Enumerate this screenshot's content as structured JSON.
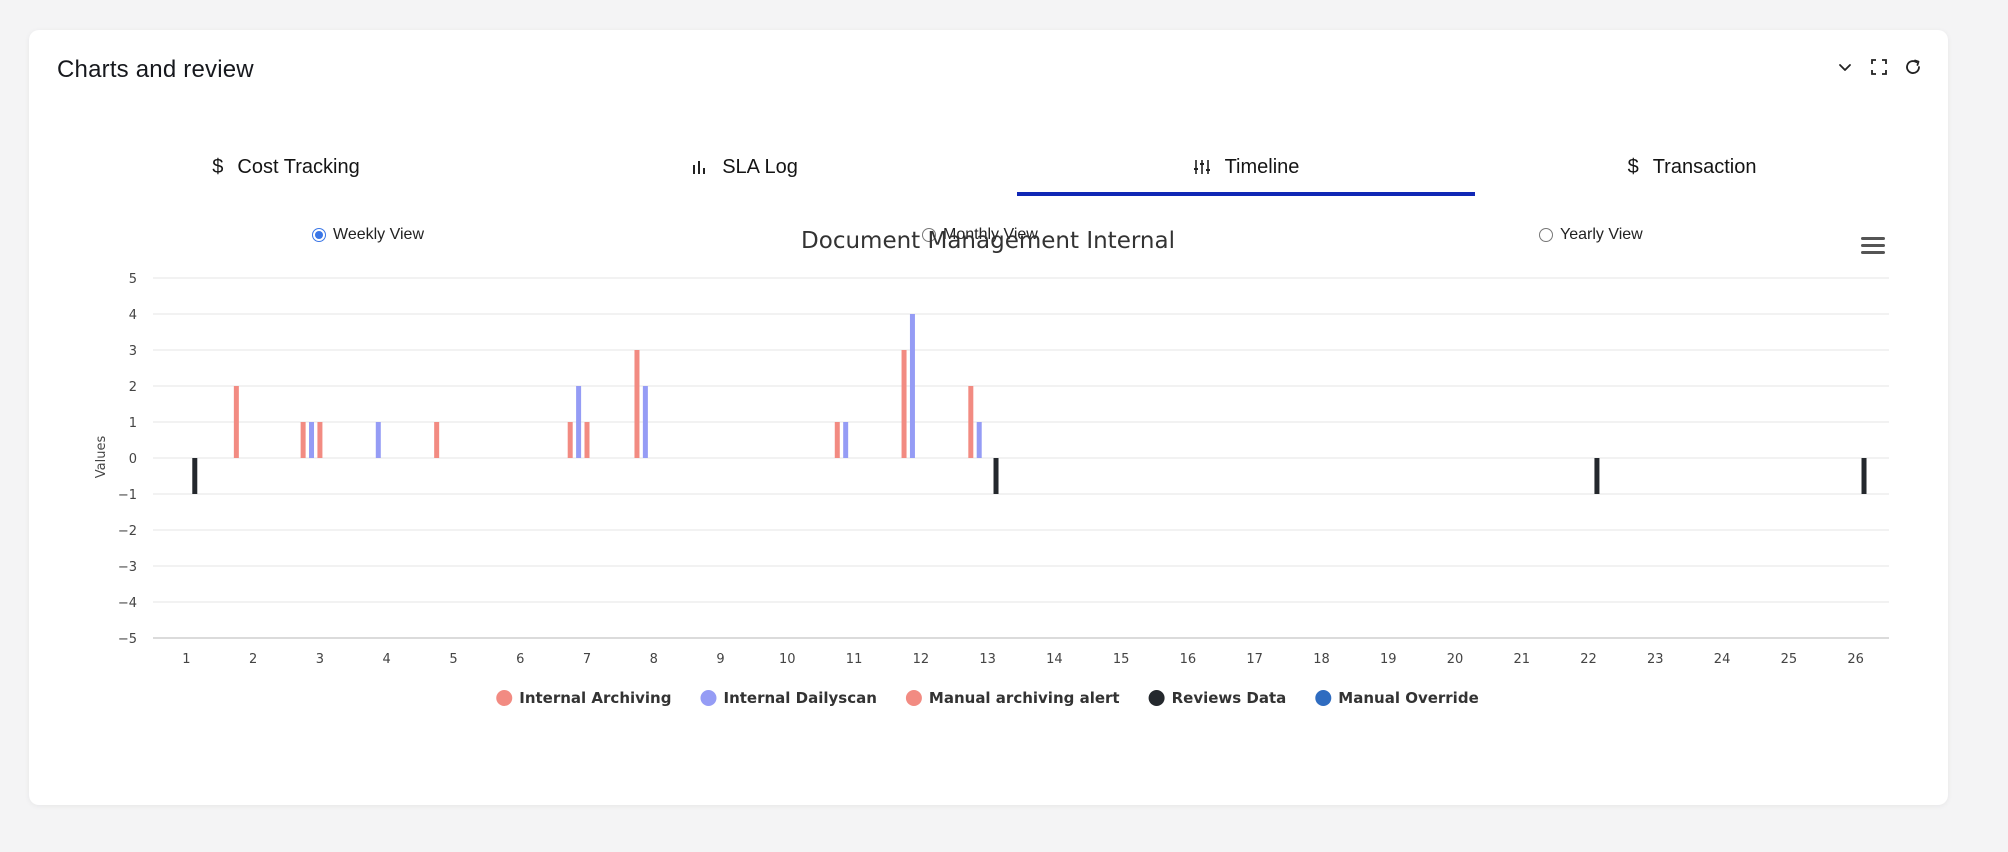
{
  "card": {
    "title": "Charts and review",
    "tools": [
      "chevron-down-icon",
      "fullscreen-icon",
      "refresh-icon"
    ]
  },
  "tabs": [
    {
      "label": "Cost Tracking",
      "icon": "dollar-icon",
      "active": false
    },
    {
      "label": "SLA Log",
      "icon": "bar-chart-icon",
      "active": false
    },
    {
      "label": "Timeline",
      "icon": "sliders-icon",
      "active": true
    },
    {
      "label": "Transaction",
      "icon": "dollar-icon",
      "active": false
    }
  ],
  "view_options": [
    {
      "label": "Weekly View",
      "checked": true
    },
    {
      "label": "Monthly View",
      "checked": false
    },
    {
      "label": "Yearly View",
      "checked": false
    }
  ],
  "menu_icon": "hamburger-menu-icon",
  "accent_color": "#1027b5",
  "chart_data": {
    "type": "bar",
    "title": "Document Management Internal",
    "xlabel": "",
    "ylabel": "Values",
    "ylim": [
      -5,
      5
    ],
    "yticks": [
      5,
      4,
      3,
      2,
      1,
      0,
      -1,
      -2,
      -3,
      -4,
      -5
    ],
    "categories": [
      "1",
      "2",
      "3",
      "4",
      "5",
      "6",
      "7",
      "8",
      "9",
      "10",
      "11",
      "12",
      "13",
      "14",
      "15",
      "16",
      "17",
      "18",
      "19",
      "20",
      "21",
      "22",
      "23",
      "24",
      "25",
      "26"
    ],
    "grid": true,
    "legend_position": "bottom",
    "series": [
      {
        "name": "Internal Archiving",
        "color": "#f28b82",
        "values": [
          0,
          2,
          1,
          0,
          1,
          0,
          1,
          3,
          0,
          0,
          1,
          3,
          2,
          0,
          0,
          0,
          0,
          0,
          0,
          0,
          0,
          0,
          0,
          0,
          0,
          0
        ]
      },
      {
        "name": "Internal Dailyscan",
        "color": "#959cf5",
        "values": [
          0,
          0,
          1,
          1,
          0,
          0,
          2,
          2,
          0,
          0,
          1,
          4,
          1,
          0,
          0,
          0,
          0,
          0,
          0,
          0,
          0,
          0,
          0,
          0,
          0,
          0
        ]
      },
      {
        "name": "Manual archiving alert",
        "color": "#f28b82",
        "values": [
          0,
          0,
          1,
          0,
          0,
          0,
          1,
          0,
          0,
          0,
          0,
          0,
          0,
          0,
          0,
          0,
          0,
          0,
          0,
          0,
          0,
          0,
          0,
          0,
          0,
          0
        ]
      },
      {
        "name": "Reviews Data",
        "color": "#24282d",
        "values": [
          -1,
          0,
          0,
          0,
          0,
          0,
          0,
          0,
          0,
          0,
          0,
          0,
          -1,
          0,
          0,
          0,
          0,
          0,
          0,
          0,
          0,
          -1,
          0,
          0,
          0,
          -1
        ]
      },
      {
        "name": "Manual Override",
        "color": "#2f6cc0",
        "values": [
          0,
          0,
          0,
          0,
          0,
          0,
          0,
          0,
          0,
          0,
          0,
          0,
          0,
          0,
          0,
          0,
          0,
          0,
          0,
          0,
          0,
          0,
          0,
          0,
          0,
          0
        ]
      }
    ]
  }
}
